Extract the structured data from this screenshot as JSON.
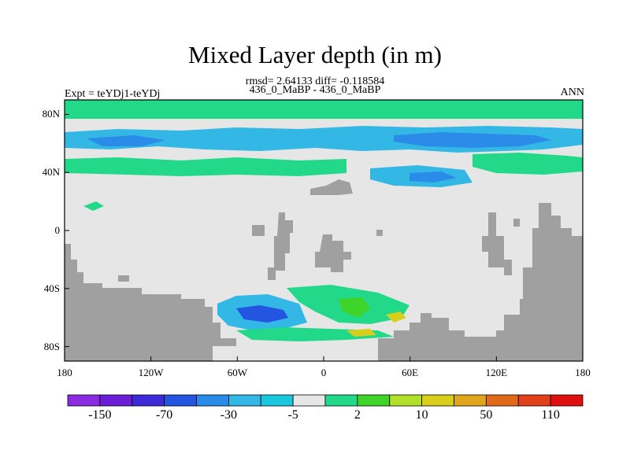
{
  "title": "Mixed Layer depth (in m)",
  "stats_line": "rmsd= 2.64133 diff= -0.118584",
  "case_line": "436_0_MaBP - 436_0_MaBP",
  "expt_label": "Expt = teYDj1-teYDj",
  "season_label": "ANN",
  "lat_ticks": [
    "80N",
    "40N",
    "0",
    "40S",
    "80S"
  ],
  "lon_ticks": [
    "180",
    "120W",
    "60W",
    "0",
    "60E",
    "120E",
    "180"
  ],
  "colorbar": {
    "labels": [
      "-150",
      "-70",
      "-30",
      "-5",
      "2",
      "10",
      "50",
      "110"
    ],
    "colors": [
      "#8a2be2",
      "#6a1fd6",
      "#3c2bd6",
      "#2355e0",
      "#2b8be8",
      "#33b8e6",
      "#19c8dd",
      "#e6e6e6",
      "#22d98a",
      "#3fd42a",
      "#b2e02a",
      "#d8cf1a",
      "#e0a51a",
      "#e06a18",
      "#e2401a",
      "#e01010"
    ]
  },
  "map_colors": {
    "ocean": "#e6e6e6",
    "land": "#a0a0a0",
    "positive_small": "#22d98a",
    "positive_mid": "#3fd42a",
    "positive_high": "#d8cf1a",
    "negative_small": "#33b8e6",
    "negative_mid": "#2b8be8",
    "negative_high": "#2355e0"
  }
}
